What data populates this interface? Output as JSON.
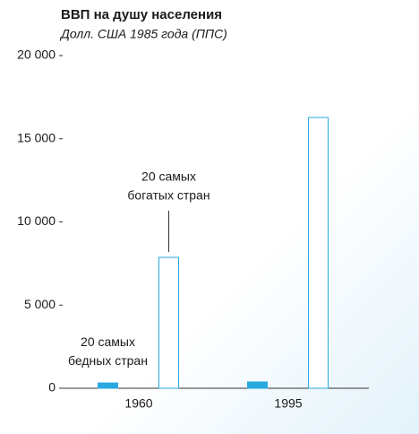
{
  "chart_data": {
    "type": "bar",
    "title": "ВВП на душу населения",
    "subtitle": "Долл. США 1985 года (ППС)",
    "categories": [
      "1960",
      "1995"
    ],
    "series": [
      {
        "color": "#29a9e0",
        "fill": "#29a9e0",
        "values": [
          320,
          380
        ]
      },
      {
        "color": "#29a9e0",
        "fill": "#ffffff",
        "values": [
          7870,
          16280
        ]
      }
    ],
    "annotations": [
      {
        "series": 0,
        "lines": [
          "20 самых",
          "бедных стран"
        ]
      },
      {
        "series": 1,
        "lines": [
          "20 самых",
          "богатых стран"
        ]
      }
    ],
    "ylim": [
      0,
      20000
    ],
    "yticks": [
      0,
      {
        "value": 5000,
        "label": "5 000"
      },
      {
        "value": 10000,
        "label": "10 000"
      },
      {
        "value": 15000,
        "label": "15 000"
      },
      {
        "value": 20000,
        "label": "20 000"
      }
    ]
  }
}
